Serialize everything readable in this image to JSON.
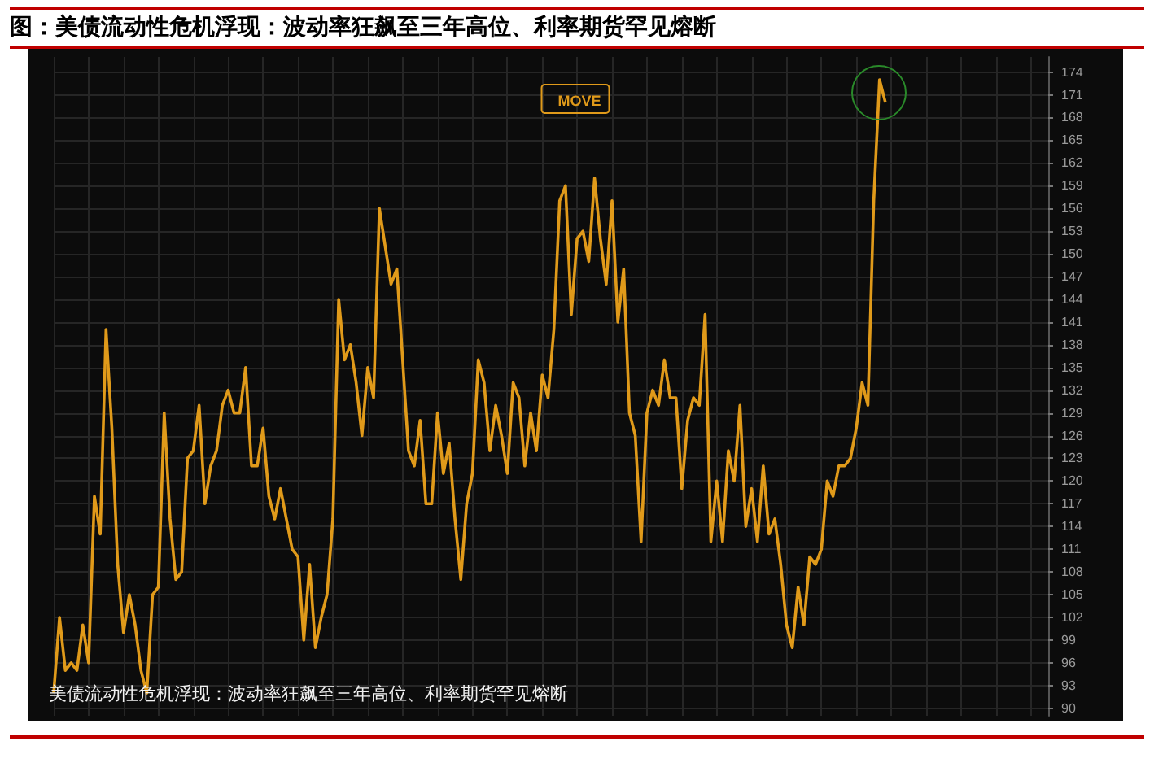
{
  "chart_data": {
    "type": "line",
    "title": "图：美债流动性危机浮现：波动率狂飙至三年高位、利率期货罕见熔断",
    "subtitle": "美债流动性危机浮现：波动率狂飙至三年高位、利率期货罕见熔断",
    "categories": [
      null,
      null,
      null,
      null,
      null,
      null,
      null,
      null,
      null,
      null,
      null,
      null,
      null,
      null,
      null,
      null,
      null,
      null,
      null,
      null,
      null,
      null,
      null,
      null,
      null,
      null,
      null,
      null,
      null,
      null,
      null,
      null,
      null,
      null,
      null,
      null,
      null,
      null,
      null,
      null,
      null,
      null,
      null,
      null,
      null,
      null,
      null,
      null,
      null,
      null,
      null,
      null,
      null,
      null,
      null,
      null,
      null,
      null,
      null,
      null,
      null,
      null,
      null,
      null,
      null,
      null,
      null,
      null,
      null,
      null,
      null,
      null,
      null,
      null,
      null,
      null,
      null,
      null,
      null,
      null,
      null,
      null,
      null,
      null,
      null,
      null,
      null,
      null,
      null,
      null,
      null,
      null,
      null,
      null,
      null,
      null,
      null,
      null,
      null,
      null,
      null,
      null,
      null,
      null,
      null,
      null,
      null,
      null,
      null,
      null,
      null,
      null,
      null,
      null,
      null,
      null,
      null,
      null,
      null,
      null,
      null,
      null,
      null,
      null,
      null,
      null,
      null,
      null,
      null,
      null,
      null,
      null,
      null,
      null,
      null,
      null,
      null,
      null,
      null,
      null,
      null,
      null,
      null,
      null,
      null,
      null,
      null,
      null,
      null,
      null,
      null,
      null,
      null,
      null,
      null,
      null,
      null,
      null,
      null,
      null,
      null,
      null,
      null,
      null,
      null,
      null,
      null,
      null,
      null,
      null,
      null,
      null
    ],
    "series": [
      {
        "name": "MOVE",
        "color": "#e09a1a",
        "values": [
          92,
          102,
          95,
          96,
          95,
          101,
          96,
          118,
          113,
          140,
          127,
          109,
          100,
          105,
          101,
          95,
          92,
          105,
          106,
          129,
          115,
          107,
          108,
          123,
          124,
          130,
          117,
          122,
          124,
          130,
          132,
          129,
          129,
          135,
          122,
          122,
          127,
          118,
          115,
          119,
          115,
          111,
          110,
          99,
          109,
          98,
          102,
          105,
          115,
          144,
          136,
          138,
          133,
          126,
          135,
          131,
          156,
          151,
          146,
          148,
          136,
          124,
          122,
          128,
          117,
          117,
          129,
          121,
          125,
          115,
          107,
          117,
          121,
          136,
          133,
          124,
          130,
          126,
          121,
          133,
          131,
          122,
          129,
          124,
          134,
          131,
          140,
          157,
          159,
          142,
          152,
          153,
          149,
          160,
          152,
          146,
          157,
          141,
          148,
          129,
          126,
          112,
          129,
          132,
          130,
          136,
          131,
          131,
          119,
          128,
          131,
          130,
          142,
          112,
          120,
          112,
          124,
          120,
          130,
          114,
          119,
          112,
          122,
          113,
          115,
          109,
          101,
          98,
          106,
          101,
          110,
          109,
          111,
          120,
          118,
          122,
          122,
          123,
          127,
          133,
          130,
          157,
          173,
          170,
          null,
          null,
          null,
          null,
          null,
          null,
          null,
          null,
          null,
          null,
          null,
          null,
          null,
          null,
          null,
          null,
          null,
          null,
          null,
          null,
          null,
          null,
          null,
          null,
          null,
          null,
          null,
          null
        ]
      }
    ],
    "ylim": [
      89,
      176
    ],
    "yticks": [
      90,
      93,
      96,
      99,
      102,
      105,
      108,
      111,
      114,
      117,
      120,
      123,
      126,
      129,
      132,
      135,
      138,
      141,
      144,
      147,
      150,
      153,
      156,
      159,
      162,
      165,
      168,
      171,
      174
    ],
    "grid": true,
    "legend": "top",
    "line_style": "solid"
  }
}
